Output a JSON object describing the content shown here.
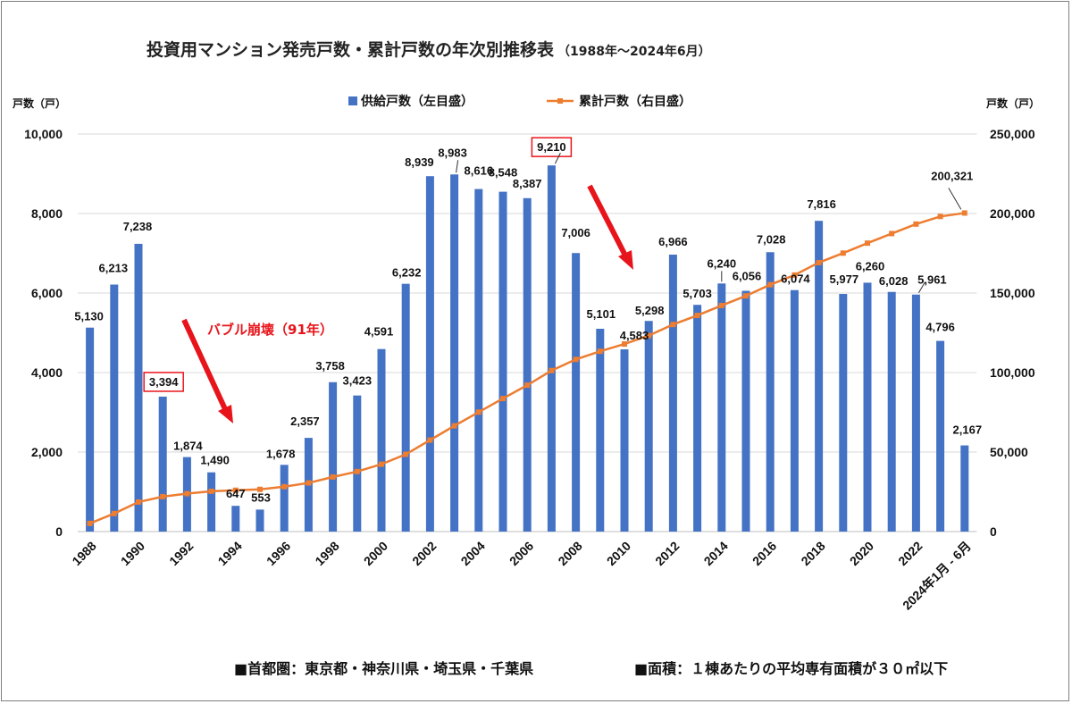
{
  "chart_data": {
    "type": "bar+line",
    "title": "投資用マンション発売戸数・累計戸数の年次別推移表",
    "subtitle": "（1988年～2024年6月）",
    "ylabel_left": "戸数（戸）",
    "ylabel_right": "戸数（戸）",
    "ylim_left": [
      0,
      10000
    ],
    "ylim_right": [
      0,
      250000
    ],
    "yticks_left": [
      "0",
      "2,000",
      "4,000",
      "6,000",
      "8,000",
      "10,000"
    ],
    "yticks_right": [
      "0",
      "50,000",
      "100,000",
      "150,000",
      "200,000",
      "250,000"
    ],
    "categories": [
      "1988",
      "1989",
      "1990",
      "1991",
      "1992",
      "1993",
      "1994",
      "1995",
      "1996",
      "1997",
      "1998",
      "1999",
      "2000",
      "2001",
      "2002",
      "2003",
      "2004",
      "2005",
      "2006",
      "2007",
      "2008",
      "2009",
      "2010",
      "2011",
      "2012",
      "2013",
      "2014",
      "2015",
      "2016",
      "2017",
      "2018",
      "2019",
      "2020",
      "2021",
      "2022",
      "2023",
      "2024年1月 - 6月"
    ],
    "x_tick_labels": [
      "1988",
      "1990",
      "1992",
      "1994",
      "1996",
      "1998",
      "2000",
      "2002",
      "2004",
      "2006",
      "2008",
      "2010",
      "2012",
      "2014",
      "2016",
      "2018",
      "2020",
      "2022",
      "2024年1月 - 6月"
    ],
    "grid": true,
    "legend_position": "top",
    "series": [
      {
        "name": "供給戸数（左目盛）",
        "type": "bar",
        "axis": "left",
        "color": "#4472c4",
        "values": [
          5130,
          6213,
          7238,
          3394,
          1874,
          1490,
          647,
          553,
          1678,
          2357,
          3758,
          3423,
          4591,
          6232,
          8939,
          8983,
          8616,
          8548,
          8387,
          9210,
          7006,
          5101,
          4583,
          5298,
          6966,
          5703,
          6240,
          6056,
          7028,
          6074,
          7816,
          5977,
          6260,
          6028,
          5961,
          4796,
          2167
        ],
        "labels": [
          "5,130",
          "6,213",
          "7,238",
          "3,394",
          "1,874",
          "1,490",
          "647",
          "553",
          "1,678",
          "2,357",
          "3,758",
          "3,423",
          "4,591",
          "6,232",
          "8,939",
          "8,983",
          "8,616",
          "8,548",
          "8,387",
          "9,210",
          "7,006",
          "5,101",
          "4,583",
          "5,298",
          "6,966",
          "5,703",
          "6,240",
          "6,056",
          "7,028",
          "6,074",
          "7,816",
          "5,977",
          "6,260",
          "6,028",
          "5,961",
          "4,796",
          "2,167"
        ]
      },
      {
        "name": "累計戸数（右目盛）",
        "type": "line",
        "axis": "right",
        "color": "#ed7d31",
        "values": [
          5130,
          11343,
          18581,
          21975,
          23849,
          25339,
          25986,
          26539,
          28217,
          30574,
          34332,
          37755,
          42346,
          48578,
          57517,
          66500,
          75116,
          83664,
          92051,
          101261,
          108267,
          113368,
          117951,
          123249,
          130215,
          135918,
          142158,
          148214,
          155242,
          161316,
          169132,
          175109,
          181369,
          187397,
          193358,
          198154,
          200321
        ],
        "end_label": "200,321"
      }
    ],
    "annotations": {
      "bubble": "バブル崩壊（91年）"
    },
    "footnote": {
      "area": "■首都圏：東京都・神奈川県・埼玉県・千葉県",
      "size": "■面積：１棟あたりの平均専有面積が３０㎡以下"
    }
  }
}
